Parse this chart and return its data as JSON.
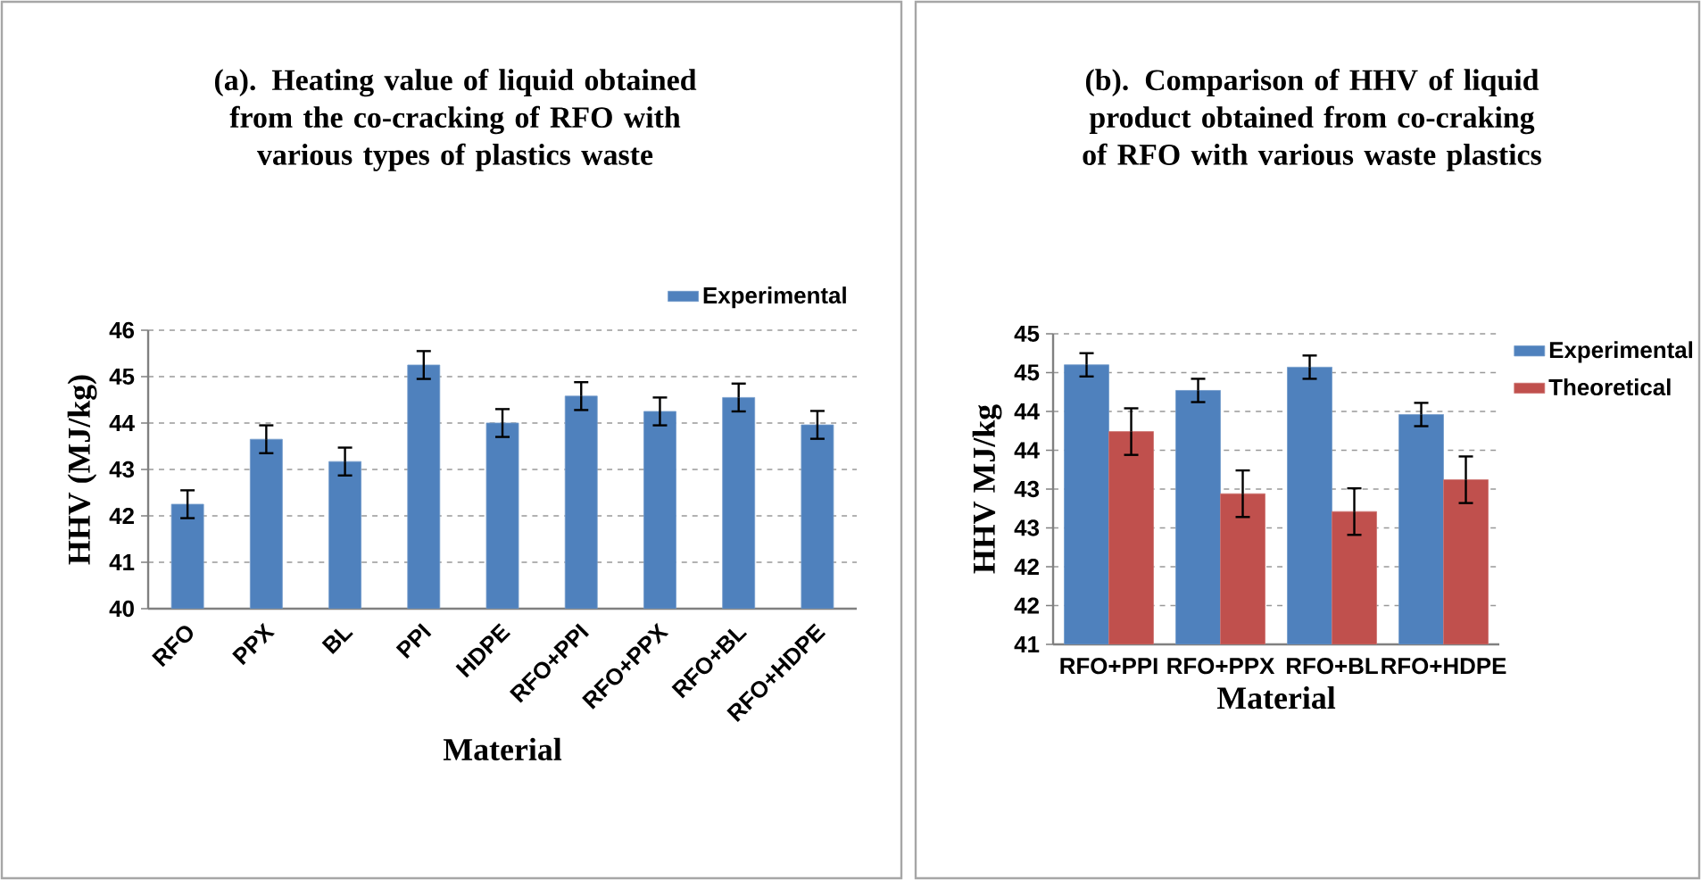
{
  "chart_data": [
    {
      "type": "bar",
      "title": "(a). Heating value of liquid obtained from the co-cracking of RFO with various types of plastics waste",
      "xlabel": "Material",
      "ylabel": "HHV (MJ/kg)",
      "categories": [
        "RFO",
        "PPX",
        "BL",
        "PPI",
        "HDPE",
        "RFO+PPI",
        "RFO+PPX",
        "RFO+BL",
        "RFO+HDPE"
      ],
      "series": [
        {
          "name": "Experimental",
          "color": "#4f81bd",
          "values": [
            42.25,
            43.65,
            43.17,
            45.25,
            44.0,
            44.58,
            44.25,
            44.55,
            43.96
          ],
          "errors": [
            0.3,
            0.3,
            0.3,
            0.3,
            0.3,
            0.3,
            0.3,
            0.3,
            0.3
          ]
        }
      ],
      "ylim": [
        40,
        46
      ],
      "yticks": [
        40,
        41,
        42,
        43,
        44,
        45,
        46
      ],
      "grid": "y",
      "legend": "top right"
    },
    {
      "type": "bar",
      "title": "(b). Comparison of HHV of liquid product obtained from co-craking of RFO with various waste plastics",
      "xlabel": "Material",
      "ylabel": "HHV MJ/kg",
      "categories": [
        "RFO+PPI",
        "RFO+PPX",
        "RFO+BL",
        "RFO+HDPE"
      ],
      "series": [
        {
          "name": "Experimental",
          "color": "#4f81bd",
          "values": [
            44.6,
            44.27,
            44.57,
            43.96
          ],
          "errors": [
            0.15,
            0.15,
            0.15,
            0.15
          ]
        },
        {
          "name": "Theoretical",
          "color": "#c0504d",
          "values": [
            43.74,
            42.94,
            42.71,
            43.12
          ],
          "errors": [
            0.3,
            0.3,
            0.3,
            0.3
          ]
        }
      ],
      "ylim": [
        41,
        45
      ],
      "yticks": [
        41,
        {
          "value": 41.5,
          "label": "42"
        },
        42,
        {
          "value": 42.5,
          "label": "43"
        },
        43,
        {
          "value": 43.5,
          "label": "44"
        },
        44,
        {
          "value": 44.5,
          "label": "45"
        },
        45
      ],
      "grid": "y",
      "legend": "right"
    }
  ]
}
